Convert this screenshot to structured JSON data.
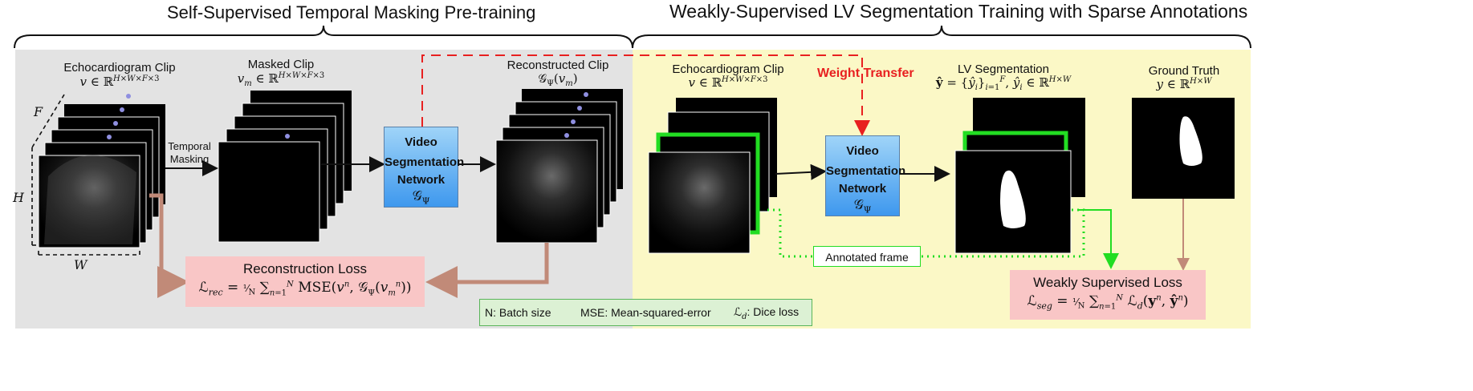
{
  "sections": {
    "pretraining_title": "Self-Supervised Temporal Masking Pre-training",
    "segmentation_title": "Weakly-Supervised LV Segmentation Training with Sparse Annotations"
  },
  "pretraining": {
    "input_clip_title": "Echocardiogram Clip",
    "input_clip_math": "v ∈ ℝ^{H×W×F×3}",
    "dim_f": "F",
    "dim_h": "H",
    "dim_w": "W",
    "masking_label_line1": "Temporal",
    "masking_label_line2": "Masking",
    "masked_clip_title": "Masked Clip",
    "masked_clip_math": "v_m ∈ ℝ^{H×W×F×3}",
    "network_line1": "Video",
    "network_line2": "Segmentation",
    "network_line3": "Network",
    "network_symbol": "𝒢_Ψ",
    "recon_clip_title": "Reconstructed Clip",
    "recon_clip_math": "𝒢_Ψ(v_m)",
    "loss_title": "Reconstruction Loss",
    "loss_formula": "ℒ_{rec} = 1/N ∑_{n=1}^{N} MSE(v^n, 𝒢_Ψ(v_m^n))"
  },
  "transfer_label": "Weight Transfer",
  "segmentation": {
    "input_clip_title": "Echocardiogram Clip",
    "input_clip_math": "v ∈ ℝ^{H×W×F×3}",
    "network_line1": "Video",
    "network_line2": "Segmentation",
    "network_line3": "Network",
    "network_symbol": "𝒢_Ψ",
    "output_title": "LV Segmentation",
    "output_math": "ŷ = {ŷ_i}_{i=1}^{F}, ŷ_i ∈ ℝ^{H×W}",
    "gt_title": "Ground Truth",
    "gt_math": "y ∈ ℝ^{H×W}",
    "annotated_label": "Annotated frame",
    "loss_title": "Weakly Supervised Loss",
    "loss_formula": "ℒ_{seg} = 1/N ∑_{n=1}^{N} ℒ_d(y^n, ŷ^n)"
  },
  "legend": {
    "batch": "N: Batch size",
    "mse": "MSE: Mean-squared-error",
    "dice": "ℒ_d: Dice loss"
  },
  "colors": {
    "pretrain_bg": "#e3e3e3",
    "segment_bg": "#fbf8c6",
    "loss_bg": "#f9c6c6",
    "loss_arrow": "#c18a78",
    "annotated_green": "#22dd22",
    "transfer_red": "#e82020",
    "network_blue": "#3e98ee",
    "legend_bg": "#dcf1d4",
    "legend_border": "#5ab55a"
  }
}
